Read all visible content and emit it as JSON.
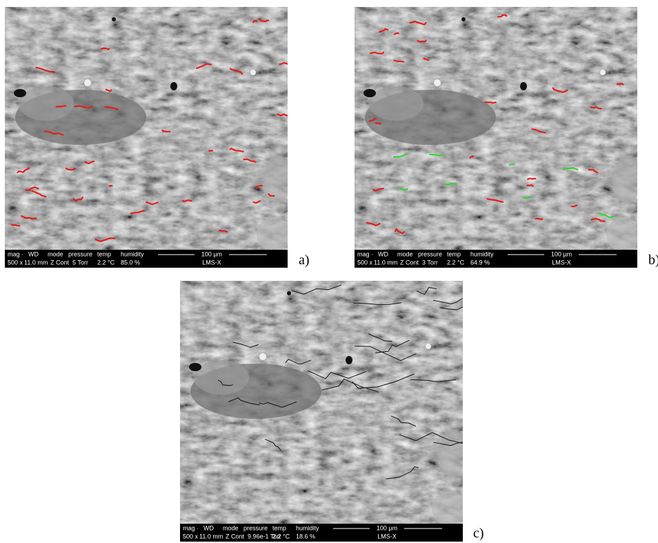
{
  "panels": [
    {
      "label": "a)",
      "databar": {
        "headers": [
          "mag ·",
          "WD",
          "mode",
          "pressure",
          "temp",
          "humidity"
        ],
        "values": [
          "500 x",
          "11.0 mm",
          "Z Cont",
          "5 Torr",
          "2.2 °C",
          "85.0 %"
        ],
        "scale": "100 µm",
        "detector": "LMS-X"
      }
    },
    {
      "label": "b)",
      "databar": {
        "headers": [
          "mag ·",
          "WD",
          "mode",
          "pressure",
          "temp",
          "humidity"
        ],
        "values": [
          "500 x",
          "11.0 mm",
          "Z Cont",
          "3 Torr",
          "2.2 °C",
          "64.9 %"
        ],
        "scale": "100 µm",
        "detector": "LMS-X"
      }
    },
    {
      "label": "c)",
      "databar": {
        "headers": [
          "mag ·",
          "WD",
          "mode",
          "pressure",
          "temp",
          "humidity"
        ],
        "values": [
          "500 x",
          "11.0 mm",
          "Z Cont",
          "9.96e-1 Torr",
          "2.2 °C",
          "18.6 %"
        ],
        "scale": "100 µm",
        "detector": "LMS-X"
      }
    }
  ]
}
